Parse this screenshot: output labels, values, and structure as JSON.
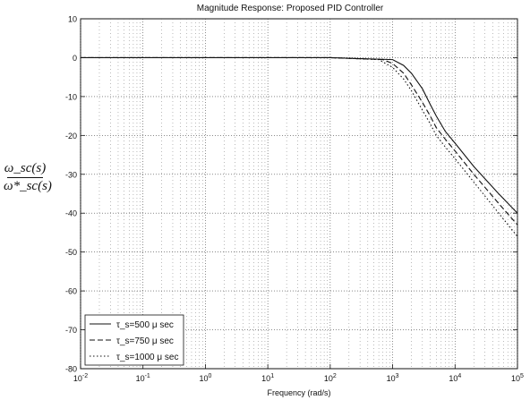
{
  "chart_data": {
    "type": "line",
    "title": "Magnitude Response: Proposed PID Controller",
    "xlabel": "Frequency (rad/s)",
    "ylabel_numerator": "ω_sc(s)",
    "ylabel_denominator": "ω*_sc(s)",
    "x_scale": "log",
    "xlim": [
      0.01,
      100000
    ],
    "ylim": [
      -80,
      10
    ],
    "x_ticks": [
      0.01,
      0.1,
      1,
      10,
      100,
      1000,
      10000,
      100000
    ],
    "x_tick_labels": [
      "10^-2",
      "10^-1",
      "10^0",
      "10^1",
      "10^2",
      "10^3",
      "10^4",
      "10^5"
    ],
    "y_ticks": [
      10,
      0,
      -10,
      -20,
      -30,
      -40,
      -50,
      -60,
      -70,
      -80
    ],
    "y_tick_labels": [
      "10",
      "0",
      "-10",
      "-20",
      "-30",
      "-40",
      "-50",
      "-60",
      "-70",
      "-80"
    ],
    "grid": true,
    "legend_position": "bottom-left",
    "series": [
      {
        "name": "τ_s=500 μ sec",
        "style": "solid",
        "color": "#111111",
        "x": [
          0.01,
          100,
          1000,
          1500,
          2000,
          3000,
          4000,
          5000,
          7000,
          10000,
          20000,
          50000,
          100000
        ],
        "y": [
          0,
          0,
          -0.5,
          -2,
          -4,
          -8,
          -12,
          -15,
          -19,
          -22,
          -28,
          -35,
          -40
        ]
      },
      {
        "name": "τ_s=750 μ sec",
        "style": "dashed",
        "color": "#111111",
        "x": [
          0.01,
          100,
          700,
          1000,
          1500,
          2000,
          3000,
          4000,
          5000,
          7000,
          10000,
          20000,
          50000,
          100000
        ],
        "y": [
          0,
          0,
          -0.5,
          -1.5,
          -4,
          -7,
          -11.5,
          -15,
          -18,
          -21,
          -24,
          -30,
          -37.5,
          -43
        ]
      },
      {
        "name": "τ_s=1000 μ sec",
        "style": "dotted",
        "color": "#111111",
        "x": [
          0.01,
          100,
          600,
          1000,
          1500,
          2000,
          3000,
          4000,
          5000,
          7000,
          10000,
          20000,
          50000,
          100000
        ],
        "y": [
          0,
          0,
          -0.5,
          -2.5,
          -5.5,
          -8.5,
          -13.5,
          -17,
          -20,
          -23,
          -26,
          -32,
          -40,
          -46
        ]
      }
    ]
  }
}
